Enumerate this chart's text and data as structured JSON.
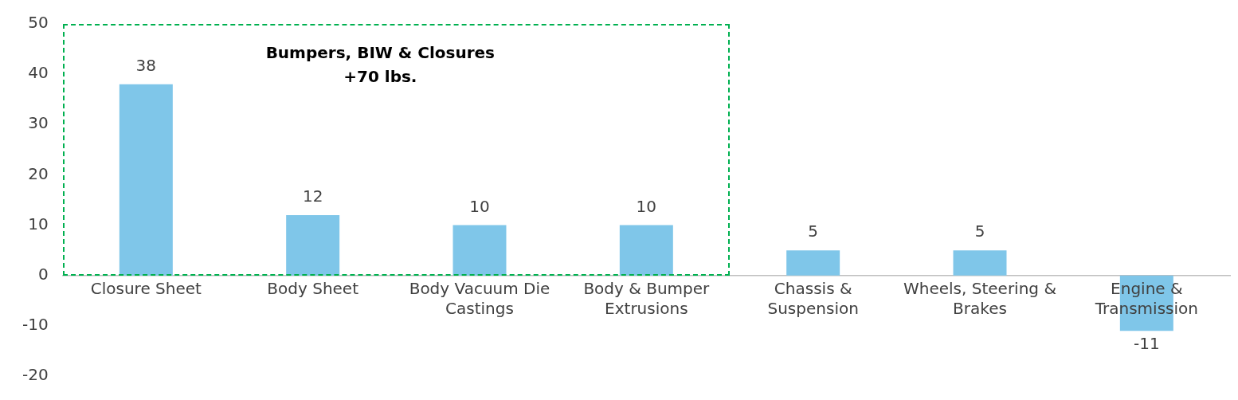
{
  "chart_data": {
    "type": "bar",
    "categories": [
      "Closure Sheet",
      "Body Sheet",
      "Body Vacuum Die Castings",
      "Body & Bumper Extrusions",
      "Chassis & Suspension",
      "Wheels, Steering & Brakes",
      "Engine & Transmission"
    ],
    "values": [
      38,
      12,
      10,
      10,
      5,
      5,
      -11
    ],
    "color": "#7fc6e9",
    "ylim": [
      -20,
      50
    ],
    "yticks": [
      -20,
      -10,
      0,
      10,
      20,
      30,
      40,
      50
    ],
    "grid": false,
    "legend": false,
    "data_labels": true,
    "annotations": [
      "Bumpers, BIW & Closures\n+70 lbs."
    ]
  }
}
